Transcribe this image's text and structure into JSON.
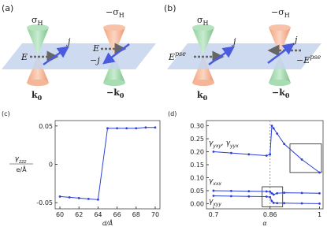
{
  "panel_a": {
    "label": "(a)",
    "sigma_left": {
      "base": "σ",
      "sub": "H"
    },
    "sigma_right": {
      "base": "−σ",
      "sub": "H"
    },
    "field_left": "E",
    "current_left": "j",
    "field_right": "E",
    "current_right": "−j",
    "k_left": {
      "base": "k",
      "sub": "0"
    },
    "k_right": {
      "base": "−k",
      "sub": "0"
    }
  },
  "panel_b": {
    "label": "(b)",
    "sigma_left": {
      "base": "σ",
      "sub": "H"
    },
    "sigma_right": {
      "base": "−σ",
      "sub": "H"
    },
    "field_left": {
      "base": "E",
      "sup": "pse"
    },
    "current_left": "j",
    "field_right": {
      "base": "−E",
      "sup": "pse"
    },
    "current_right": "j",
    "k_left": {
      "base": "k",
      "sub": "0"
    },
    "k_right": {
      "base": "−k",
      "sub": "0"
    }
  },
  "chart_data": [
    {
      "type": "line",
      "panel_label": "(c)",
      "xlabel": "d/Å",
      "ylabel": {
        "base": "γ",
        "sub": "zzz"
      },
      "ylabel_unit": "e/Å",
      "x": [
        60,
        61,
        62,
        63,
        64,
        65,
        66,
        67,
        68,
        69,
        70
      ],
      "series": [
        {
          "color": "#2b3fd6",
          "values": [
            -0.042,
            -0.043,
            -0.044,
            -0.045,
            -0.046,
            0.047,
            0.047,
            0.047,
            0.047,
            0.048,
            0.048
          ]
        }
      ],
      "xlim": [
        59.5,
        70.5
      ],
      "xticks": [
        60,
        62,
        64,
        66,
        68,
        70
      ],
      "ylim": [
        -0.058,
        0.057
      ],
      "yticks": [
        -0.05,
        0,
        0.05
      ]
    },
    {
      "type": "line",
      "panel_label": "(d)",
      "xlabel": "α",
      "x": [
        0.7,
        0.75,
        0.8,
        0.85,
        0.86,
        0.865,
        0.87,
        0.88,
        0.9,
        0.95,
        1
      ],
      "series": [
        {
          "color": "#2b3fd6",
          "values": [
            0.2,
            0.195,
            0.19,
            0.185,
            0.19,
            0.3,
            0.29,
            0.27,
            0.23,
            0.17,
            0.12
          ]
        },
        {
          "color": "#2b3fd6",
          "values": [
            0.05,
            0.049,
            0.048,
            0.047,
            0.046,
            0.04,
            0.035,
            0.04,
            0.042,
            0.041,
            0.04
          ]
        },
        {
          "color": "#2b3fd6",
          "values": [
            0.03,
            0.029,
            0.028,
            0.027,
            0.025,
            0.01,
            0.003,
            0.002,
            0.002,
            0.001,
            0
          ]
        }
      ],
      "annotations": [
        {
          "base": "γ",
          "sub": "yxy",
          "base2": ", γ",
          "sub2": "yyx"
        },
        {
          "base": "γ",
          "sub": "xxx"
        },
        {
          "base": "γ",
          "sub": "xyy"
        }
      ],
      "vline": 0.86,
      "xlim": [
        0.68,
        1.01
      ],
      "xticks": [
        0.7,
        0.86,
        1
      ],
      "ylim": [
        -0.02,
        0.32
      ],
      "yticks": [
        {
          "value": 0,
          "label": "0.00"
        },
        {
          "value": 0.05,
          "label": "0.05"
        },
        {
          "value": 0.1,
          "label": "0.10"
        },
        {
          "value": 0.15,
          "label": "0.15"
        },
        {
          "value": 0.2,
          "label": "0.20"
        },
        {
          "value": 0.25,
          "label": "0.25"
        },
        {
          "value": 0.3,
          "label": "0.30"
        }
      ]
    }
  ]
}
